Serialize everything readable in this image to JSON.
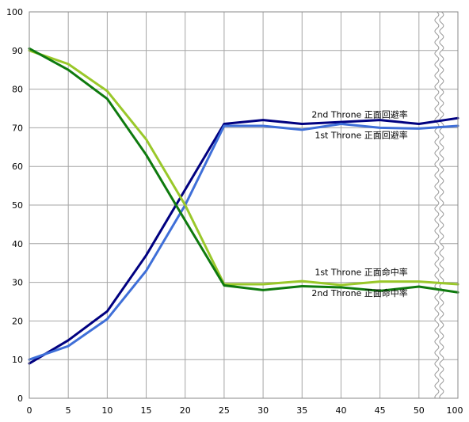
{
  "chart_data": {
    "type": "line",
    "x": [
      0,
      5,
      10,
      15,
      20,
      25,
      30,
      35,
      40,
      45,
      50,
      100
    ],
    "x_tick_labels": [
      "0",
      "5",
      "10",
      "15",
      "20",
      "25",
      "30",
      "35",
      "40",
      "45",
      "50",
      "100"
    ],
    "y_tick_labels": [
      "0",
      "10",
      "20",
      "30",
      "40",
      "50",
      "60",
      "70",
      "80",
      "90",
      "100"
    ],
    "ylim": [
      0,
      100
    ],
    "axis_break": "between 50 and 100",
    "grid": true,
    "series": [
      {
        "name": "2nd Throne 正面回避率",
        "color": "#000080",
        "values": [
          9,
          15,
          22.5,
          37,
          54,
          71,
          72,
          71,
          71.5,
          72,
          71,
          72.5
        ]
      },
      {
        "name": "1st Throne 正面回避率",
        "color": "#3f6fd8",
        "values": [
          10,
          13.5,
          20.5,
          33,
          50,
          70.5,
          70.5,
          69.5,
          71,
          70,
          69.8,
          70.5
        ]
      },
      {
        "name": "1st Throne 正面命中率",
        "color": "#9ac82a",
        "values": [
          90,
          86.5,
          79.5,
          67,
          50,
          29.5,
          29.5,
          30.3,
          29.3,
          30.2,
          30.2,
          29.5
        ]
      },
      {
        "name": "2nd Throne 正面命中率",
        "color": "#0e7a0e",
        "values": [
          90.5,
          85,
          77.5,
          63,
          46,
          29.2,
          28,
          29,
          28.7,
          27.8,
          28.9,
          27.4
        ]
      }
    ]
  }
}
